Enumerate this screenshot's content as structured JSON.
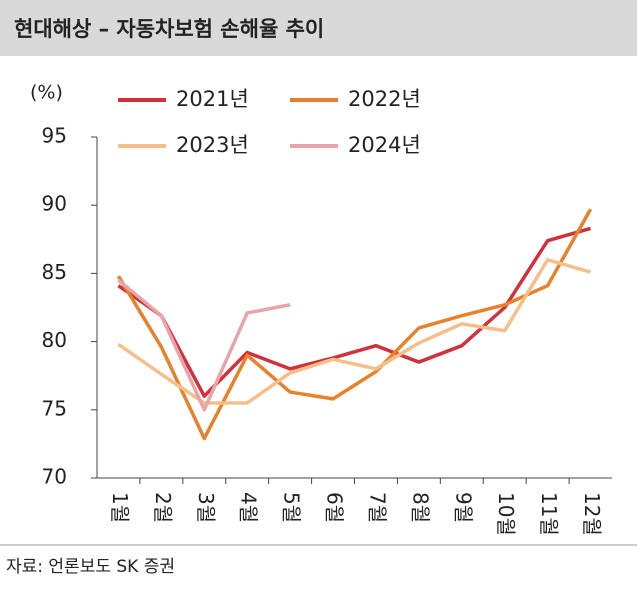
{
  "chart_data": {
    "type": "line",
    "title": "현대해상 – 자동차보험 손해율 추이",
    "y_label": "(%)",
    "source": "자료: 언론보도 SK 증권",
    "categories": [
      "1월",
      "2월",
      "3월",
      "4월",
      "5월",
      "6월",
      "7월",
      "8월",
      "9월",
      "10월",
      "11월",
      "12월"
    ],
    "series": [
      {
        "name": "2021년",
        "color": "#d3303c",
        "values": [
          84.1,
          81.9,
          76.0,
          79.2,
          78.0,
          78.8,
          79.7,
          78.5,
          79.7,
          82.5,
          87.4,
          88.3
        ]
      },
      {
        "name": "2022년",
        "color": "#e8822a",
        "values": [
          84.8,
          79.6,
          72.9,
          79.0,
          76.3,
          75.8,
          77.8,
          81.0,
          81.9,
          82.7,
          84.1,
          89.7
        ]
      },
      {
        "name": "2023년",
        "color": "#f6bf8a",
        "values": [
          79.8,
          77.6,
          75.5,
          75.5,
          77.7,
          78.7,
          78.0,
          79.9,
          81.3,
          80.8,
          86.0,
          85.1
        ]
      },
      {
        "name": "2024년",
        "color": "#e8a4a9",
        "values": [
          84.5,
          81.9,
          75.0,
          82.1,
          82.7,
          null,
          null,
          null,
          null,
          null,
          null,
          null
        ]
      }
    ],
    "ylim": [
      70,
      95
    ],
    "yticks": [
      70,
      75,
      80,
      85,
      90,
      95
    ]
  }
}
